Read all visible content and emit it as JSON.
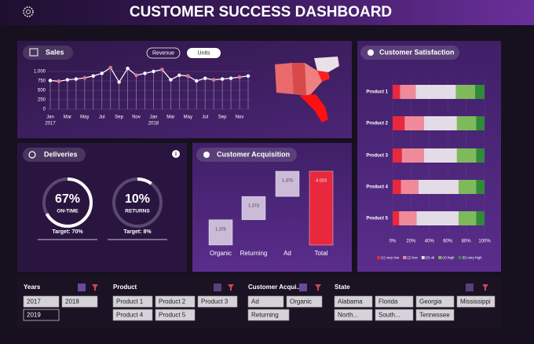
{
  "header": {
    "title": "CUSTOMER SUCCESS DASHBOARD"
  },
  "sales": {
    "title": "Sales",
    "toggle": [
      "Revenue",
      "Units"
    ],
    "chart": {
      "type": "line",
      "categories": [
        "Jan",
        null,
        "Mar",
        null,
        "May",
        null,
        "Jul",
        null,
        "Sep",
        null,
        "Nov",
        null,
        "Jan",
        null,
        "Mar",
        null,
        "May",
        null,
        "Jul",
        null,
        "Sep",
        null,
        "Nov",
        null
      ],
      "year_labels": [
        "2017",
        "2018"
      ],
      "values": [
        760,
        740,
        780,
        800,
        830,
        880,
        950,
        1100,
        720,
        1080,
        900,
        950,
        1000,
        1050,
        780,
        900,
        880,
        750,
        820,
        780,
        800,
        820,
        850,
        880
      ],
      "color": "#ffffff",
      "ylim": [
        0,
        1250
      ],
      "yticks": [
        {
          "value": 0,
          "label": "0"
        },
        {
          "value": 250,
          "label": "250"
        },
        {
          "value": 500,
          "label": "500"
        },
        {
          "value": 750,
          "label": "750"
        },
        {
          "value": 1000,
          "label": "1.000"
        }
      ]
    }
  },
  "deliveries": {
    "title": "Deliveries",
    "gauges": [
      {
        "value": 67,
        "value_label": "67%",
        "label": "ON-TIME",
        "target": "Target: 70%"
      },
      {
        "value": 10,
        "value_label": "10%",
        "label": "RETURNS",
        "target": "Target: 8%"
      }
    ]
  },
  "acquisition": {
    "title": "Customer Acquisition",
    "chart": {
      "type": "waterfall",
      "categories": [
        "Organic",
        "Returning",
        "Ad",
        "Total"
      ],
      "values": [
        1.375,
        1.273,
        1.375,
        4.023
      ],
      "colors": [
        "#cbbbd9",
        "#cbbbd9",
        "#cbbbd9",
        "#e8283c"
      ]
    }
  },
  "satisfaction": {
    "title": "Customer Satisfaction",
    "chart": {
      "type": "stacked_bar_horizontal",
      "categories": [
        "Product 1",
        "Product 2",
        "Product 3",
        "Product 4",
        "Product 5"
      ],
      "series": [
        {
          "name": "(1) very low",
          "color": "#e8283c",
          "values": [
            8,
            13,
            10,
            9,
            7
          ]
        },
        {
          "name": "(2) low",
          "color": "#f08a9a",
          "values": [
            17,
            21,
            24,
            19,
            19
          ]
        },
        {
          "name": "(3) ok",
          "color": "#e3dbe6",
          "values": [
            44,
            36,
            36,
            44,
            46
          ]
        },
        {
          "name": "(4) high",
          "color": "#7fba5a",
          "values": [
            21,
            21,
            21,
            19,
            19
          ]
        },
        {
          "name": "(5) very high",
          "color": "#2f8a3a",
          "values": [
            10,
            9,
            9,
            9,
            9
          ]
        }
      ],
      "xlim": [
        0,
        100
      ],
      "xticks": [
        {
          "value": 0,
          "label": "0%"
        },
        {
          "value": 20,
          "label": "20%"
        },
        {
          "value": 40,
          "label": "40%"
        },
        {
          "value": 60,
          "label": "60%"
        },
        {
          "value": 80,
          "label": "80%"
        },
        {
          "value": 100,
          "label": "100%"
        }
      ]
    }
  },
  "slicers": [
    {
      "title": "Years",
      "items": [
        "2017",
        "2018",
        "2019"
      ]
    },
    {
      "title": "Product",
      "items": [
        "Product 1",
        "Product 2",
        "Product 3",
        "Product 4",
        "Product 5"
      ]
    },
    {
      "title": "Customer Acqui...",
      "items": [
        "Ad",
        "Organic",
        "Returning"
      ]
    },
    {
      "title": "State",
      "items": [
        "Alabama",
        "Florida",
        "Georgia",
        "Mississippi",
        "North...",
        "South...",
        "Tennessee"
      ]
    }
  ]
}
